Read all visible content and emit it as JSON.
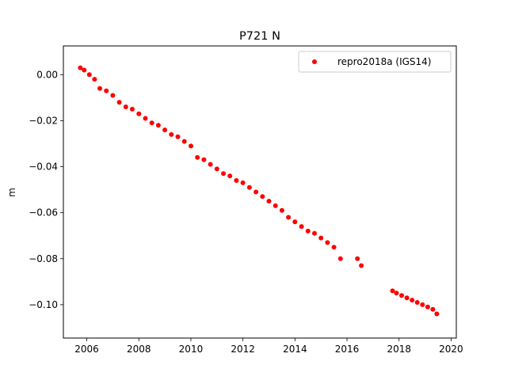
{
  "chart_data": {
    "type": "scatter",
    "title": "P721 N",
    "xlabel": "",
    "ylabel": "m",
    "xlim": [
      2005.1,
      2020.2
    ],
    "ylim": [
      -0.1145,
      0.0125
    ],
    "xticks": [
      2006,
      2008,
      2010,
      2012,
      2014,
      2016,
      2018,
      2020
    ],
    "xtick_labels": [
      "2006",
      "2008",
      "2010",
      "2012",
      "2014",
      "2016",
      "2018",
      "2020"
    ],
    "yticks": [
      0.0,
      -0.02,
      -0.04,
      -0.06,
      -0.08,
      -0.1
    ],
    "ytick_labels": [
      "0.00",
      "−0.02",
      "−0.04",
      "−0.06",
      "−0.08",
      "−0.10"
    ],
    "grid": false,
    "legend_position": "top-right",
    "series": [
      {
        "name": "repro2018a (IGS14)",
        "color": "#ff0000",
        "marker": "circle",
        "x": [
          2005.75,
          2005.9,
          2006.1,
          2006.3,
          2006.5,
          2006.75,
          2007.0,
          2007.25,
          2007.5,
          2007.75,
          2008.0,
          2008.25,
          2008.5,
          2008.75,
          2009.0,
          2009.25,
          2009.5,
          2009.75,
          2010.0,
          2010.25,
          2010.5,
          2010.75,
          2011.0,
          2011.25,
          2011.5,
          2011.75,
          2012.0,
          2012.25,
          2012.5,
          2012.75,
          2013.0,
          2013.25,
          2013.5,
          2013.75,
          2014.0,
          2014.25,
          2014.5,
          2014.75,
          2015.0,
          2015.25,
          2015.5,
          2015.75,
          2016.4,
          2016.55,
          2017.75,
          2017.9,
          2018.1,
          2018.3,
          2018.5,
          2018.7,
          2018.9,
          2019.1,
          2019.3,
          2019.45
        ],
        "y": [
          0.003,
          0.002,
          0.0,
          -0.002,
          -0.006,
          -0.007,
          -0.009,
          -0.012,
          -0.014,
          -0.015,
          -0.017,
          -0.019,
          -0.021,
          -0.022,
          -0.024,
          -0.026,
          -0.027,
          -0.029,
          -0.031,
          -0.036,
          -0.037,
          -0.039,
          -0.041,
          -0.043,
          -0.044,
          -0.046,
          -0.047,
          -0.049,
          -0.051,
          -0.053,
          -0.055,
          -0.057,
          -0.059,
          -0.062,
          -0.064,
          -0.066,
          -0.068,
          -0.069,
          -0.071,
          -0.073,
          -0.075,
          -0.08,
          -0.08,
          -0.083,
          -0.094,
          -0.095,
          -0.096,
          -0.097,
          -0.098,
          -0.099,
          -0.1,
          -0.101,
          -0.102,
          -0.104
        ]
      }
    ]
  }
}
